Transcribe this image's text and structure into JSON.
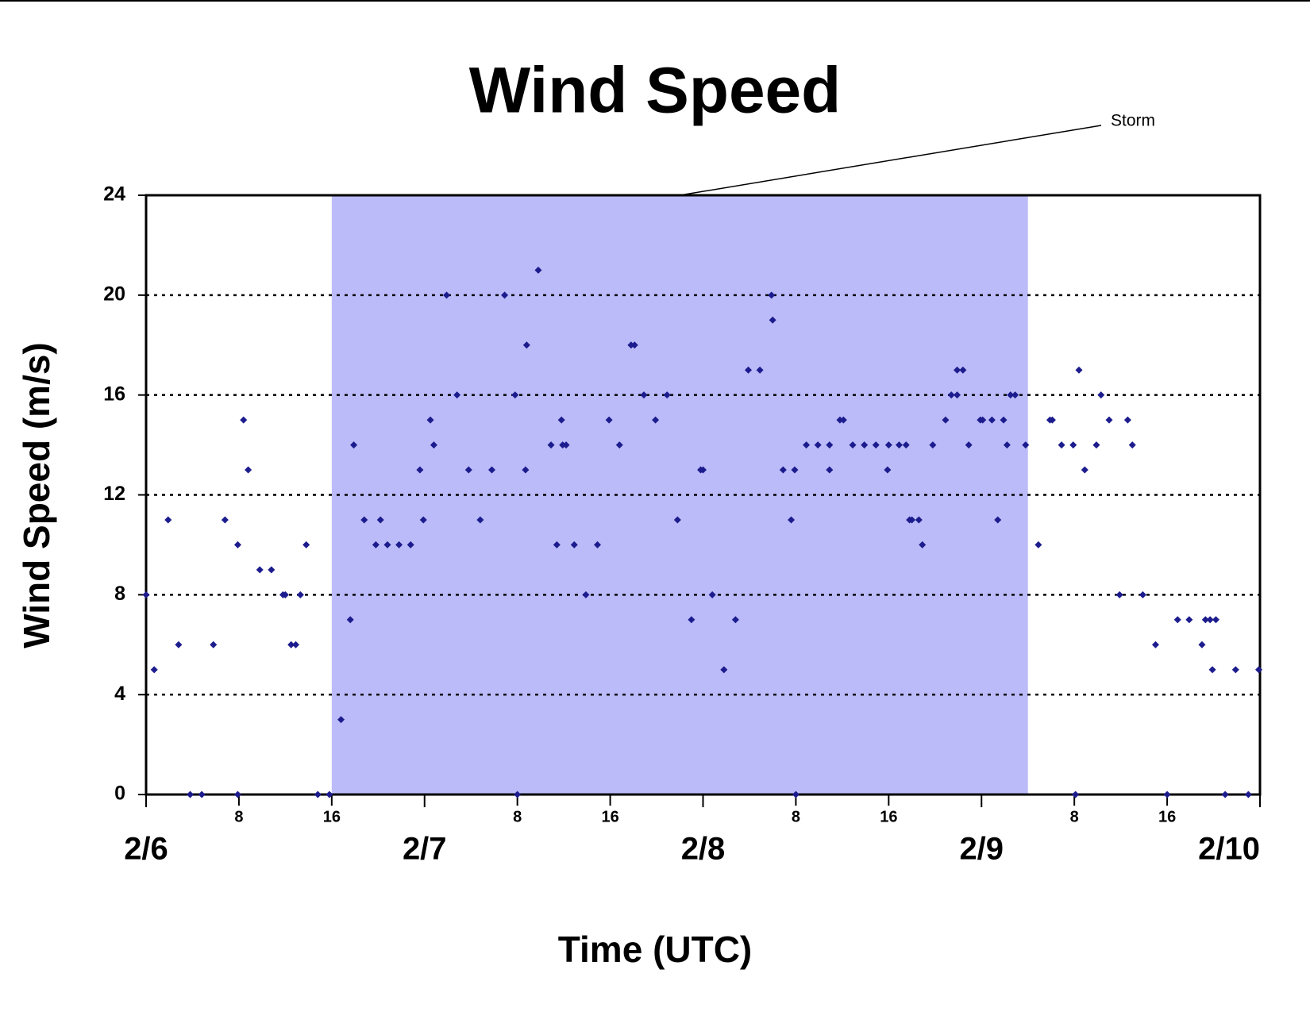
{
  "chart_data": {
    "type": "scatter",
    "title": "Wind Speed",
    "xlabel": "Time (UTC)",
    "ylabel": "Wind Speed (m/s)",
    "color": "#1c1c8e",
    "xlim": [
      0,
      96
    ],
    "ylim": [
      0,
      24
    ],
    "yticks": [
      0,
      4,
      8,
      12,
      16,
      20,
      24
    ],
    "grid": true,
    "xticks": [
      {
        "value": 8,
        "label": "8"
      },
      {
        "value": 16,
        "label": "16"
      },
      {
        "value": 32,
        "label": "8"
      },
      {
        "value": 40,
        "label": "16"
      },
      {
        "value": 56,
        "label": "8"
      },
      {
        "value": 64,
        "label": "16"
      },
      {
        "value": 80,
        "label": "8"
      },
      {
        "value": 88,
        "label": "16"
      }
    ],
    "date_ticks": [
      {
        "value": 0,
        "label": "2/6"
      },
      {
        "value": 24,
        "label": "2/7"
      },
      {
        "value": 48,
        "label": "2/8"
      },
      {
        "value": 72,
        "label": "2/9"
      },
      {
        "value": 96,
        "label": "2/10"
      }
    ],
    "storm": {
      "start": 16,
      "end": 76,
      "label": "Storm",
      "color": "#bbbbf9"
    },
    "x": [
      0,
      0.7,
      1.9,
      2.8,
      3.8,
      4.8,
      5.8,
      6.8,
      7.9,
      7.9,
      8.4,
      8.8,
      9.8,
      10.8,
      11.8,
      12.0,
      12.5,
      12.9,
      13.3,
      13.8,
      14.8,
      15.8,
      16.8,
      17.6,
      17.9,
      18.8,
      19.8,
      20.2,
      20.8,
      21.8,
      22.8,
      23.6,
      23.9,
      24.5,
      24.8,
      25.9,
      26.8,
      27.8,
      28.8,
      29.8,
      30.9,
      31.8,
      32.0,
      32.7,
      32.8,
      33.8,
      34.9,
      35.4,
      35.8,
      35.9,
      36.2,
      36.9,
      37.9,
      38.9,
      39.9,
      40.8,
      41.8,
      42.1,
      42.9,
      43.9,
      44.9,
      45.8,
      47.0,
      47.8,
      48.0,
      48.8,
      49.8,
      50.8,
      51.9,
      52.9,
      53.9,
      54.0,
      54.9,
      55.6,
      55.9,
      56.0,
      56.9,
      57.9,
      58.9,
      58.9,
      59.8,
      60.1,
      60.9,
      61.9,
      62.9,
      63.9,
      64.0,
      64.9,
      65.5,
      65.8,
      66.0,
      66.6,
      66.9,
      67.8,
      68.9,
      69.4,
      69.9,
      69.9,
      70.4,
      70.9,
      71.9,
      72.1,
      72.9,
      73.4,
      73.9,
      74.2,
      74.5,
      74.9,
      75.8,
      76.9,
      77.9,
      78.1,
      78.9,
      79.9,
      80.1,
      80.4,
      80.9,
      81.9,
      82.3,
      83.0,
      83.9,
      84.6,
      85.0,
      85.9,
      87.0,
      88.0,
      88.9,
      89.9,
      91.0,
      91.3,
      91.7,
      91.9,
      92.2,
      93.0,
      93.9,
      95.0,
      95.9
    ],
    "values": [
      8,
      5,
      11,
      6,
      0,
      0,
      6,
      11,
      10,
      0,
      15,
      13,
      9,
      9,
      8,
      8,
      6,
      6,
      8,
      10,
      0,
      0,
      3,
      7,
      14,
      11,
      10,
      11,
      10,
      10,
      10,
      13,
      11,
      15,
      14,
      20,
      16,
      13,
      11,
      13,
      20,
      16,
      0,
      13,
      18,
      21,
      14,
      10,
      15,
      14,
      14,
      10,
      8,
      10,
      15,
      14,
      18,
      18,
      16,
      15,
      16,
      11,
      7,
      13,
      13,
      8,
      5,
      7,
      17,
      17,
      20,
      19,
      13,
      11,
      13,
      0,
      14,
      14,
      13,
      14,
      15,
      15,
      14,
      14,
      14,
      13,
      14,
      14,
      14,
      11,
      11,
      11,
      10,
      14,
      15,
      16,
      17,
      16,
      17,
      14,
      15,
      15,
      15,
      11,
      15,
      14,
      16,
      16,
      14,
      10,
      15,
      15,
      14,
      14,
      0,
      17,
      13,
      14,
      16,
      15,
      8,
      15,
      14,
      8,
      6,
      0,
      7,
      7,
      6,
      7,
      7,
      5,
      7,
      0,
      5,
      0,
      5
    ]
  }
}
